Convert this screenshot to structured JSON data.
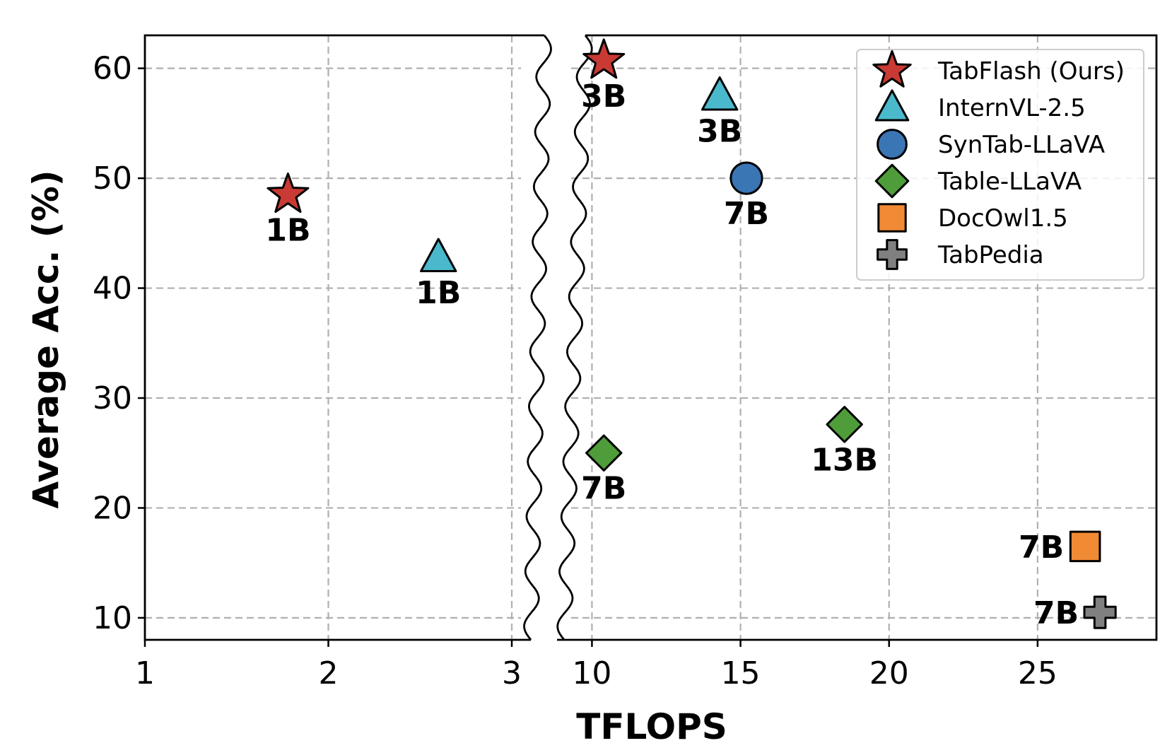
{
  "chart_data": {
    "type": "scatter",
    "xlabel": "TFLOPS",
    "ylabel": "Average Acc. (%)",
    "grid": true,
    "legend_position": "top-right",
    "axis_break": true,
    "panels": [
      {
        "name": "left",
        "xlim": [
          1,
          3.05
        ],
        "xticks": [
          1,
          2,
          3
        ]
      },
      {
        "name": "right",
        "xlim": [
          9.3,
          29
        ],
        "xticks": [
          10,
          15,
          20,
          25
        ]
      }
    ],
    "ylim": [
      8,
      63
    ],
    "yticks": [
      10,
      20,
      30,
      40,
      50,
      60
    ],
    "series": [
      {
        "name": "TabFlash (Ours)",
        "marker": "star",
        "color": "#c83a33",
        "points": [
          {
            "x": 1.78,
            "y": 48.5,
            "label": "1B"
          },
          {
            "x": 10.4,
            "y": 60.7,
            "label": "3B"
          }
        ]
      },
      {
        "name": "InternVL-2.5",
        "marker": "triangle",
        "color": "#4bb9cc",
        "points": [
          {
            "x": 2.6,
            "y": 42.8,
            "label": "1B"
          },
          {
            "x": 14.3,
            "y": 57.5,
            "label": "3B"
          }
        ]
      },
      {
        "name": "SynTab-LLaVA",
        "marker": "circle",
        "color": "#3a75b4",
        "points": [
          {
            "x": 15.2,
            "y": 50.0,
            "label": "7B"
          }
        ]
      },
      {
        "name": "Table-LLaVA",
        "marker": "diamond",
        "color": "#4f9d3a",
        "points": [
          {
            "x": 10.4,
            "y": 25.0,
            "label": "7B"
          },
          {
            "x": 18.5,
            "y": 27.6,
            "label": "13B"
          }
        ]
      },
      {
        "name": "DocOwl1.5",
        "marker": "square",
        "color": "#f08a35",
        "points": [
          {
            "x": 26.6,
            "y": 16.5,
            "label": "7B"
          }
        ]
      },
      {
        "name": "TabPedia",
        "marker": "plus",
        "color": "#808080",
        "points": [
          {
            "x": 27.1,
            "y": 10.5,
            "label": "7B"
          }
        ]
      }
    ]
  }
}
